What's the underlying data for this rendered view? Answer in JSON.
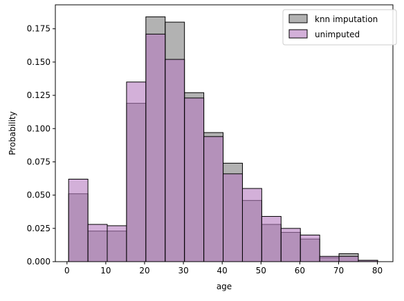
{
  "chart_data": {
    "type": "bar",
    "xlabel": "age",
    "ylabel": "Probability",
    "xlim": [
      -3,
      84
    ],
    "ylim": [
      0,
      0.193
    ],
    "xticks": [
      0,
      10,
      20,
      30,
      40,
      50,
      60,
      70,
      80
    ],
    "xtick_labels": [
      "0",
      "10",
      "20",
      "30",
      "40",
      "50",
      "60",
      "70",
      "80"
    ],
    "yticks": [
      0,
      0.025,
      0.05,
      0.075,
      0.1,
      0.125,
      0.15,
      0.175
    ],
    "ytick_labels": [
      "0.000",
      "0.025",
      "0.050",
      "0.075",
      "0.100",
      "0.125",
      "0.150",
      "0.175"
    ],
    "bin_edges": [
      0.42,
      5.4,
      10.37,
      15.35,
      20.33,
      25.31,
      30.28,
      35.26,
      40.24,
      45.22,
      50.19,
      55.17,
      60.15,
      65.13,
      70.1,
      75.08,
      80.06
    ],
    "grid": false,
    "legend_position": "top-right",
    "series": [
      {
        "name": "knn imputation",
        "color": "#7f7f7f",
        "values": [
          0.051,
          0.023,
          0.023,
          0.119,
          0.184,
          0.18,
          0.127,
          0.097,
          0.074,
          0.046,
          0.028,
          0.022,
          0.017,
          0.003,
          0.006,
          0.001
        ]
      },
      {
        "name": "unimputed",
        "color": "#b67bbf",
        "values": [
          0.062,
          0.028,
          0.027,
          0.135,
          0.171,
          0.152,
          0.123,
          0.094,
          0.066,
          0.055,
          0.034,
          0.025,
          0.02,
          0.004,
          0.004,
          0.001
        ]
      }
    ]
  }
}
